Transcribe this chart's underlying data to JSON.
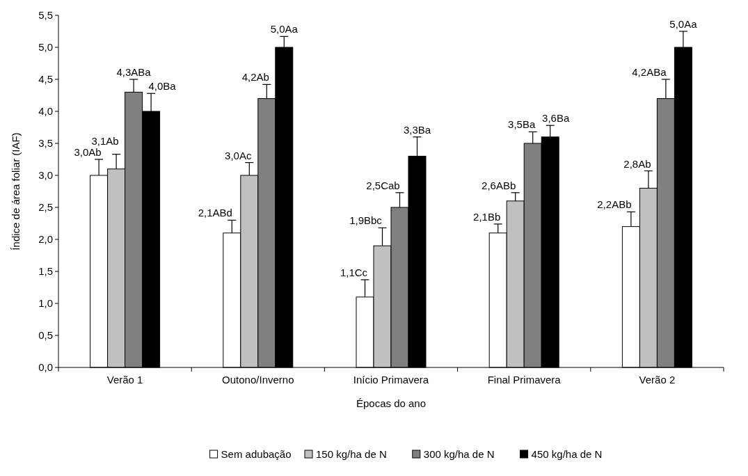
{
  "chart_data": {
    "type": "bar",
    "xlabel": "Épocas do ano",
    "ylabel": "Índice de área foliar (IAF)",
    "categories": [
      "Verão 1",
      "Outono/Inverno",
      "Início Primavera",
      "Final Primavera",
      "Verão 2"
    ],
    "series": [
      {
        "name": "Sem adubação",
        "color": "#ffffff",
        "values": [
          3.0,
          2.1,
          1.1,
          2.1,
          2.2
        ],
        "errors": [
          [
            3.0,
            3.25
          ],
          [
            2.1,
            2.3
          ],
          [
            1.1,
            1.37
          ],
          [
            2.1,
            2.24
          ],
          [
            2.2,
            2.43
          ]
        ],
        "value_labels": [
          "3,0Ab",
          "2,1ABd",
          "1,1Cc",
          "2,1Bb",
          "2,2ABb"
        ]
      },
      {
        "name": "150 kg/ha de N",
        "color": "#c0c0c0",
        "values": [
          3.1,
          3.0,
          1.9,
          2.6,
          2.8
        ],
        "errors": [
          [
            3.1,
            3.33
          ],
          [
            3.0,
            3.2
          ],
          [
            1.9,
            2.18
          ],
          [
            2.6,
            2.73
          ],
          [
            2.8,
            3.07
          ]
        ],
        "value_labels": [
          "3,1Ab",
          "3,0Ac",
          "1,9Bbc",
          "2,6ABb",
          "2,8Ab"
        ]
      },
      {
        "name": "300 kg/ha de N",
        "color": "#808080",
        "values": [
          4.3,
          4.2,
          2.5,
          3.5,
          4.2
        ],
        "errors": [
          [
            4.3,
            4.5
          ],
          [
            4.2,
            4.42
          ],
          [
            2.5,
            2.73
          ],
          [
            3.5,
            3.68
          ],
          [
            4.2,
            4.5
          ]
        ],
        "value_labels": [
          "4,3ABa",
          "4,2Ab",
          "2,5Cab",
          "3,5Ba",
          "4,2ABa"
        ]
      },
      {
        "name": "450 kg/ha de N",
        "color": "#000000",
        "values": [
          4.0,
          5.0,
          3.3,
          3.6,
          5.0
        ],
        "errors": [
          [
            4.0,
            4.28
          ],
          [
            5.0,
            5.17
          ],
          [
            3.3,
            3.6
          ],
          [
            3.6,
            3.78
          ],
          [
            5.0,
            5.25
          ]
        ],
        "value_labels": [
          "4,0Ba",
          "5,0Aa",
          "3,3Ba",
          "3,6Ba",
          "5,0Aa"
        ]
      }
    ],
    "ylim": [
      0,
      5.5
    ],
    "yticks": [
      {
        "value": 0,
        "label": "0,0"
      },
      {
        "value": 0.5,
        "label": "0,5"
      },
      {
        "value": 1,
        "label": "1,0"
      },
      {
        "value": 1.5,
        "label": "1,5"
      },
      {
        "value": 2,
        "label": "2,0"
      },
      {
        "value": 2.5,
        "label": "2,5"
      },
      {
        "value": 3,
        "label": "3,0"
      },
      {
        "value": 3.5,
        "label": "3,5"
      },
      {
        "value": 4,
        "label": "4,0"
      },
      {
        "value": 4.5,
        "label": "4,5"
      },
      {
        "value": 5,
        "label": "5,0"
      },
      {
        "value": 5.5,
        "label": "5,5"
      }
    ],
    "grid": false,
    "legend": "bottom"
  }
}
